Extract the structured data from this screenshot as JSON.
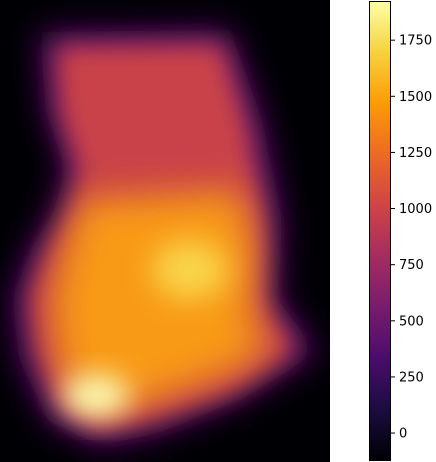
{
  "chart_data": {
    "type": "heatmap",
    "title": "",
    "xlabel": "",
    "ylabel": "",
    "colormap": "inferno",
    "colorbar": {
      "range": [
        -120,
        1920
      ],
      "ticks": [
        0,
        250,
        500,
        750,
        1000,
        1250,
        1500,
        1750
      ],
      "tick_labels": [
        "0",
        "250",
        "500",
        "750",
        "1000",
        "1250",
        "1500",
        "1750"
      ]
    },
    "grid": false,
    "axes_visible": false,
    "description_values": {
      "background_value": -120,
      "northern_plateau_value": 1050,
      "central_belt_value": 1450,
      "east_central_peak_value": 1780,
      "southern_peak_value": 1920
    },
    "colormap_stops": [
      "#000004",
      "#1b0c41",
      "#4a0c6b",
      "#781c6d",
      "#a52c60",
      "#cf4446",
      "#ed6925",
      "#fb9b06",
      "#f7d13d",
      "#fcffa4"
    ]
  }
}
